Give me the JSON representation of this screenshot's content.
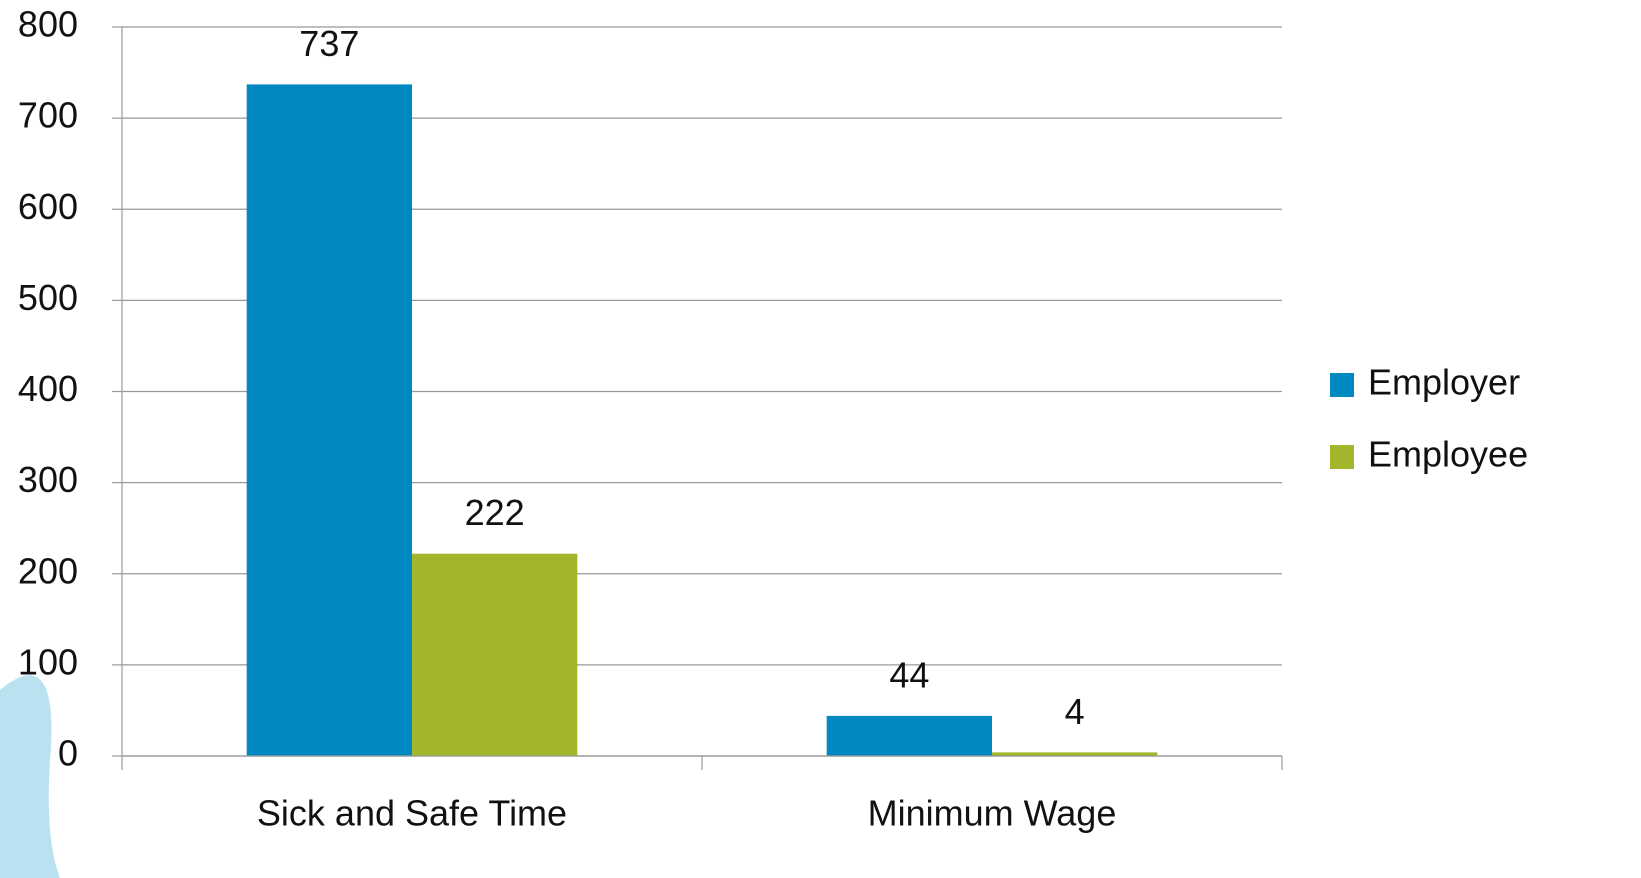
{
  "chart_data": {
    "type": "bar",
    "categories": [
      "Sick and Safe Time",
      "Minimum Wage"
    ],
    "series": [
      {
        "name": "Employer",
        "color": "#0088c2",
        "values": [
          737,
          44
        ]
      },
      {
        "name": "Employee",
        "color": "#a3b52a",
        "values": [
          222,
          4
        ]
      }
    ],
    "ylim": [
      0,
      800
    ],
    "yticks": [
      0,
      100,
      200,
      300,
      400,
      500,
      600,
      700,
      800
    ],
    "grid": true,
    "legend": "right",
    "data_labels": true
  }
}
